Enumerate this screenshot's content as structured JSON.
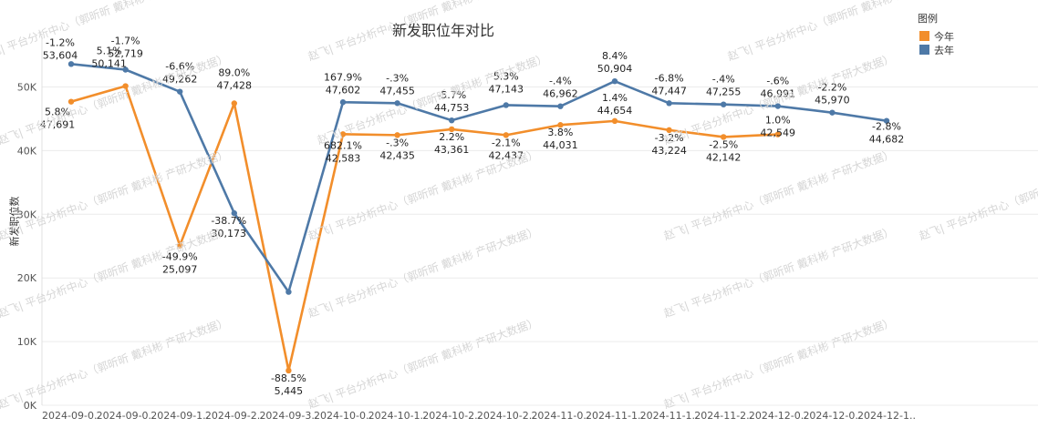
{
  "chart_data": {
    "type": "line",
    "title": "新发职位年对比",
    "ylabel": "新发职位数",
    "xlabel": "",
    "ylim": [
      0,
      57000
    ],
    "yticks": [
      "0K",
      "10K",
      "20K",
      "30K",
      "40K",
      "50K"
    ],
    "ytick_values": [
      0,
      10000,
      20000,
      30000,
      40000,
      50000
    ],
    "grid": true,
    "legend_title": "图例",
    "legend_position": "top-right",
    "categories": [
      "2024-09-0..",
      "2024-09-0..",
      "2024-09-1..",
      "2024-09-2..",
      "2024-09-3..",
      "2024-10-0..",
      "2024-10-1..",
      "2024-10-2..",
      "2024-10-2..",
      "2024-11-0..",
      "2024-11-1..",
      "2024-11-1..",
      "2024-11-2..",
      "2024-12-0..",
      "2024-12-0..",
      "2024-12-1.."
    ],
    "series": [
      {
        "name": "今年",
        "color": "#F28E2B",
        "values": [
          47691,
          50141,
          25097,
          47428,
          5445,
          42583,
          42435,
          43361,
          42437,
          44031,
          44654,
          43224,
          42142,
          42549,
          null,
          null
        ],
        "labels": [
          "5.8%\n47,691",
          "5.1%\n50,141",
          "-49.9%\n25,097",
          "89.0%\n47,428",
          "-88.5%\n5,445",
          "682.1%\n42,583",
          "-.3%\n42,435",
          "2.2%\n43,361",
          "-2.1%\n42,437",
          "3.8%\n44,031",
          "1.4%\n44,654",
          "-3.2%\n43,224",
          "-2.5%\n42,142",
          "1.0%\n42,549",
          "",
          ""
        ]
      },
      {
        "name": "去年",
        "color": "#4E79A7",
        "values": [
          53604,
          52719,
          49262,
          30173,
          17800,
          47602,
          47455,
          44753,
          47143,
          46962,
          50904,
          47447,
          47255,
          46991,
          45970,
          44682
        ],
        "labels": [
          "-1.2%\n53,604",
          "-1.7%\n52,719",
          "-6.6%\n49,262",
          "-38.7%\n30,173",
          "",
          "167.9%\n47,602",
          "-.3%\n47,455",
          "-5.7%\n44,753",
          "5.3%\n47,143",
          "-.4%\n46,962",
          "8.4%\n50,904",
          "-6.8%\n47,447",
          "-.4%\n47,255",
          "-.6%\n46,991",
          "-2.2%\n45,970",
          "-2.8%\n44,682"
        ]
      }
    ]
  },
  "watermark": "赵飞| 平台分析中心（郭昕昕 戴科彬 产研大数据）"
}
